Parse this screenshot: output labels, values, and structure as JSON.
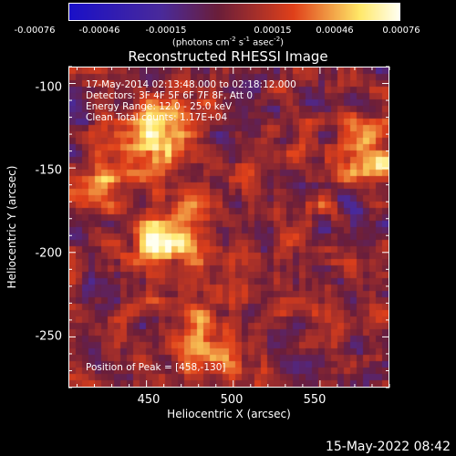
{
  "chart_data": {
    "type": "heatmap",
    "title": "Reconstructed RHESSI Image",
    "xlabel": "Heliocentric X (arcsec)",
    "ylabel": "Heliocentric Y (arcsec)",
    "xlim": [
      405,
      590
    ],
    "ylim": [
      -280,
      -90
    ],
    "xticks": [
      450,
      500,
      550
    ],
    "yticks": [
      -100,
      -150,
      -200,
      -250
    ],
    "colorbar": {
      "ticks": [
        "-0.00076",
        "-0.00046",
        "-0.00015",
        "0.00015",
        "0.00046",
        "0.00076"
      ],
      "range": [
        -0.00076,
        0.00076
      ],
      "unit_prefix": "(photons cm",
      "unit_exp1": "-2",
      "unit_mid": " s",
      "unit_exp2": "-1",
      "unit_mid2": " asec",
      "unit_exp3": "-2",
      "unit_suffix": ")"
    },
    "annotations": {
      "time": "17-May-2014 02:13:48.000 to 02:18:12.000",
      "detectors": "Detectors: 3F 4F 5F 6F 7F 8F, Att 0",
      "energy": "Energy Range: 12.0 - 25.0 keV",
      "method": "Clean     Total counts: 1.17E+04",
      "peak": "Position of Peak = [458,-130]"
    },
    "colors": {
      "low": "#1a10c8",
      "mid_low": "#4a2a9a",
      "mid": "#6a1e3a",
      "mid_high": "#e0401a",
      "high": "#ffe868",
      "top": "#fffff0"
    },
    "bright_sources": [
      {
        "x": 458,
        "y": -130,
        "value": 0.00076
      },
      {
        "x": 462,
        "y": -195,
        "value": 0.0007
      },
      {
        "x": 485,
        "y": -255,
        "value": 0.00046
      },
      {
        "x": 580,
        "y": -140,
        "value": 0.00046
      },
      {
        "x": 428,
        "y": -162,
        "value": 0.0003
      }
    ]
  },
  "timestamp": "15-May-2022 08:42"
}
